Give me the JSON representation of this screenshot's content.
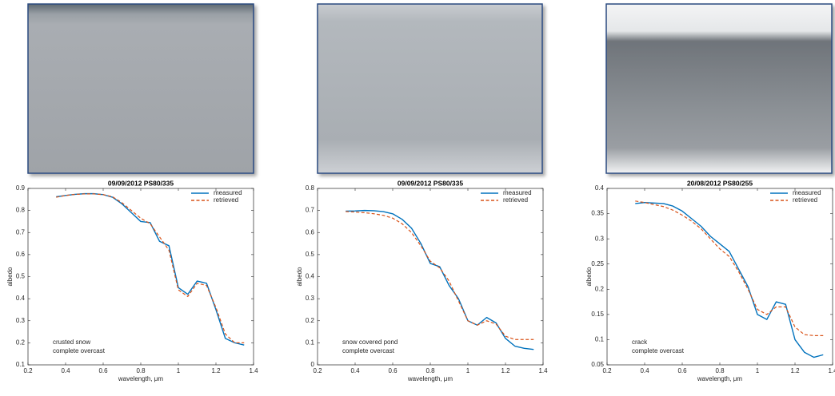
{
  "chart_data": [
    {
      "type": "line",
      "title": "09/09/2012 PS80/335",
      "xlabel": "wavelength, μm",
      "ylabel": "albedo",
      "annotation": [
        "crusted snow",
        "complete overcast"
      ],
      "x": [
        0.35,
        0.4,
        0.45,
        0.5,
        0.55,
        0.6,
        0.65,
        0.7,
        0.75,
        0.8,
        0.85,
        0.9,
        0.95,
        1.0,
        1.05,
        1.1,
        1.15,
        1.2,
        1.25,
        1.3,
        1.35
      ],
      "xlim": [
        0.2,
        1.4
      ],
      "xticks": [
        0.2,
        0.4,
        0.6,
        0.8,
        1,
        1.2,
        1.4
      ],
      "ylim": [
        0.1,
        0.9
      ],
      "yticks": [
        0.1,
        0.2,
        0.3,
        0.4,
        0.5,
        0.6,
        0.7,
        0.8,
        0.9
      ],
      "series": [
        {
          "name": "measured",
          "color": "#0072bd",
          "values": [
            0.862,
            0.868,
            0.873,
            0.876,
            0.876,
            0.872,
            0.86,
            0.83,
            0.79,
            0.75,
            0.745,
            0.66,
            0.64,
            0.45,
            0.42,
            0.48,
            0.47,
            0.35,
            0.22,
            0.2,
            0.19
          ]
        },
        {
          "name": "retrieved",
          "color": "#d95319",
          "dashed": true,
          "values": [
            0.86,
            0.868,
            0.873,
            0.875,
            0.875,
            0.872,
            0.862,
            0.835,
            0.8,
            0.765,
            0.74,
            0.68,
            0.62,
            0.44,
            0.41,
            0.47,
            0.46,
            0.36,
            0.24,
            0.2,
            0.2
          ]
        }
      ]
    },
    {
      "type": "line",
      "title": "09/09/2012 PS80/335",
      "xlabel": "wavelength, μm",
      "ylabel": "albedo",
      "annotation": [
        "snow covered pond",
        "complete overcast"
      ],
      "x": [
        0.35,
        0.4,
        0.45,
        0.5,
        0.55,
        0.6,
        0.65,
        0.7,
        0.75,
        0.8,
        0.85,
        0.9,
        0.95,
        1.0,
        1.05,
        1.1,
        1.15,
        1.2,
        1.25,
        1.3,
        1.35
      ],
      "xlim": [
        0.2,
        1.4
      ],
      "xticks": [
        0.2,
        0.4,
        0.6,
        0.8,
        1,
        1.2,
        1.4
      ],
      "ylim": [
        0,
        0.8
      ],
      "yticks": [
        0,
        0.1,
        0.2,
        0.3,
        0.4,
        0.5,
        0.6,
        0.7,
        0.8
      ],
      "series": [
        {
          "name": "measured",
          "color": "#0072bd",
          "values": [
            0.697,
            0.698,
            0.7,
            0.699,
            0.695,
            0.685,
            0.66,
            0.62,
            0.55,
            0.46,
            0.445,
            0.36,
            0.3,
            0.2,
            0.18,
            0.215,
            0.19,
            0.12,
            0.085,
            0.075,
            0.07
          ]
        },
        {
          "name": "retrieved",
          "color": "#d95319",
          "dashed": true,
          "values": [
            0.695,
            0.693,
            0.69,
            0.685,
            0.678,
            0.665,
            0.64,
            0.6,
            0.54,
            0.47,
            0.44,
            0.38,
            0.29,
            0.2,
            0.18,
            0.2,
            0.185,
            0.13,
            0.115,
            0.115,
            0.115
          ]
        }
      ]
    },
    {
      "type": "line",
      "title": "20/08/2012 PS80/255",
      "xlabel": "wavelength, μm",
      "ylabel": "albedo",
      "annotation": [
        "crack",
        "complete overcast"
      ],
      "x": [
        0.35,
        0.4,
        0.45,
        0.5,
        0.55,
        0.6,
        0.65,
        0.7,
        0.75,
        0.8,
        0.85,
        0.9,
        0.95,
        1.0,
        1.05,
        1.1,
        1.15,
        1.2,
        1.25,
        1.3,
        1.35
      ],
      "xlim": [
        0.2,
        1.4
      ],
      "xticks": [
        0.2,
        0.4,
        0.6,
        0.8,
        1,
        1.2,
        1.4
      ],
      "ylim": [
        0.05,
        0.4
      ],
      "yticks": [
        0.05,
        0.1,
        0.15,
        0.2,
        0.25,
        0.3,
        0.35,
        0.4
      ],
      "series": [
        {
          "name": "measured",
          "color": "#0072bd",
          "values": [
            0.37,
            0.372,
            0.371,
            0.37,
            0.365,
            0.355,
            0.34,
            0.325,
            0.305,
            0.29,
            0.275,
            0.24,
            0.205,
            0.15,
            0.14,
            0.175,
            0.17,
            0.1,
            0.075,
            0.065,
            0.07
          ]
        },
        {
          "name": "retrieved",
          "color": "#d95319",
          "dashed": true,
          "values": [
            0.375,
            0.372,
            0.368,
            0.364,
            0.357,
            0.347,
            0.335,
            0.32,
            0.3,
            0.28,
            0.265,
            0.235,
            0.2,
            0.16,
            0.15,
            0.165,
            0.165,
            0.125,
            0.11,
            0.108,
            0.108
          ]
        }
      ]
    }
  ]
}
